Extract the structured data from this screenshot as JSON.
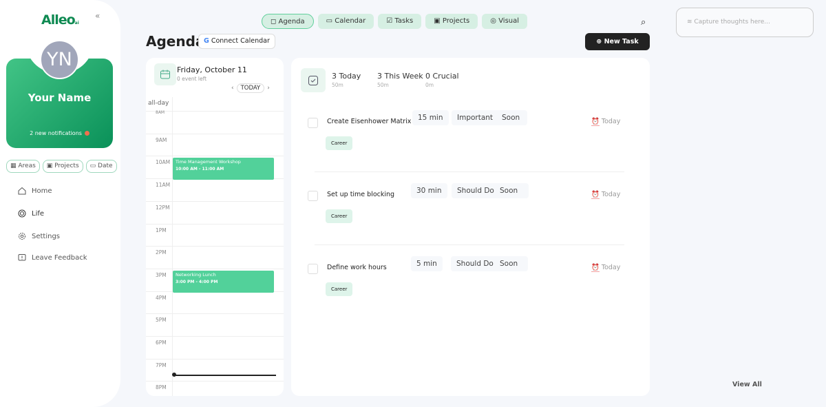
{
  "sidebar": {
    "logo": "Alleo",
    "logo_suffix": "ai",
    "collapse_icon": "double-chevron-left",
    "avatar_initials": "YN",
    "user_name": "Your Name",
    "notifications": "2 new notifications",
    "filters": [
      {
        "label": "Areas",
        "icon": "areas-icon"
      },
      {
        "label": "Projects",
        "icon": "projects-icon"
      },
      {
        "label": "Date",
        "icon": "calendar-icon"
      }
    ],
    "nav": [
      {
        "label": "Home",
        "icon": "home-icon"
      },
      {
        "label": "Life",
        "icon": "target-icon",
        "active": true
      },
      {
        "label": "Settings",
        "icon": "gear-icon"
      },
      {
        "label": "Leave Feedback",
        "icon": "feedback-icon"
      }
    ]
  },
  "topnav": {
    "tabs": [
      {
        "label": "Agenda",
        "active": true
      },
      {
        "label": "Calendar"
      },
      {
        "label": "Tasks"
      },
      {
        "label": "Projects"
      },
      {
        "label": "Visual"
      }
    ]
  },
  "header": {
    "title": "Agenda",
    "connect_calendar": "Connect Calendar",
    "new_task": "New Task"
  },
  "calendar": {
    "date": "Friday, October 11",
    "events_left": "0 event left",
    "today": "TODAY",
    "all_day": "all-day",
    "hours": [
      "8AM",
      "9AM",
      "10AM",
      "11AM",
      "12PM",
      "1PM",
      "2PM",
      "3PM",
      "4PM",
      "5PM",
      "6PM",
      "7PM",
      "8PM"
    ],
    "events": [
      {
        "title": "Time Management Workshop",
        "time": "10:00 AM - 11:00 AM",
        "start": 10,
        "end": 11
      },
      {
        "title": "Networking Lunch",
        "time": "3:00 PM - 4:00 PM",
        "start": 15,
        "end": 16
      }
    ]
  },
  "summary": [
    {
      "label": "3 Today",
      "sub": "50m"
    },
    {
      "label": "3 This Week",
      "sub": "50m"
    },
    {
      "label": "0 Crucial",
      "sub": "0m"
    }
  ],
  "tasks": [
    {
      "name": "Create Eisenhower Matrix",
      "duration": "15 min",
      "priority": "Important",
      "timing": "Soon",
      "due": "Today",
      "tag": "Career"
    },
    {
      "name": "Set up time blocking",
      "duration": "30 min",
      "priority": "Should Do",
      "timing": "Soon",
      "due": "Today",
      "tag": "Career"
    },
    {
      "name": "Define work hours",
      "duration": "5 min",
      "priority": "Should Do",
      "timing": "Soon",
      "due": "Today",
      "tag": "Career"
    }
  ],
  "thoughts": {
    "placeholder": "Capture thoughts here..."
  },
  "view_all": "View All",
  "colors": {
    "accent": "#0f8a52",
    "event": "#52d19a",
    "tab": "#d6efe3"
  }
}
